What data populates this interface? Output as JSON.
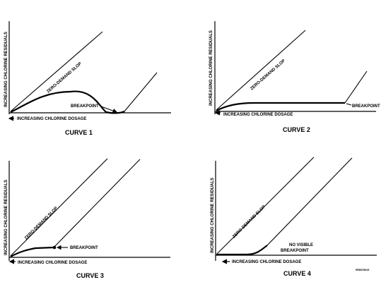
{
  "figure": {
    "code": "95MV5619",
    "panels": [
      {
        "title": "CURVE 1",
        "y_label": "INCREASING CHLORINE RESIDUALS",
        "x_label": "INCREASING CHLORINE DOSAGE",
        "slope_label": "ZERO-DEMAND SLOP",
        "point_label": "BREAKPOINT",
        "point_label_2": ""
      },
      {
        "title": "CURVE 2",
        "y_label": "INCREASING CHLORINE RESIDUALS",
        "x_label": "INCREASING CHLORINE DOSAGE",
        "slope_label": "ZERO-DEMAND SLOP",
        "point_label": "BREAKPOINT",
        "point_label_2": ""
      },
      {
        "title": "CURVE 3",
        "y_label": "INCREASING CHLORINE RESIDUALS",
        "x_label": "INCREASING CHLORINE DOSAGE",
        "slope_label": "ZERO-DEMAND SLOP",
        "point_label": "BREAKPOINT",
        "point_label_2": ""
      },
      {
        "title": "CURVE 4",
        "y_label": "INCREASING CHLORINE RESIDUALS",
        "x_label": "INCREASING CHLORINE DOSAGE",
        "slope_label": "ZERO-DEMAND SLOP",
        "point_label": "NO VISIBLE",
        "point_label_2": "BREAKPOINT"
      }
    ]
  }
}
